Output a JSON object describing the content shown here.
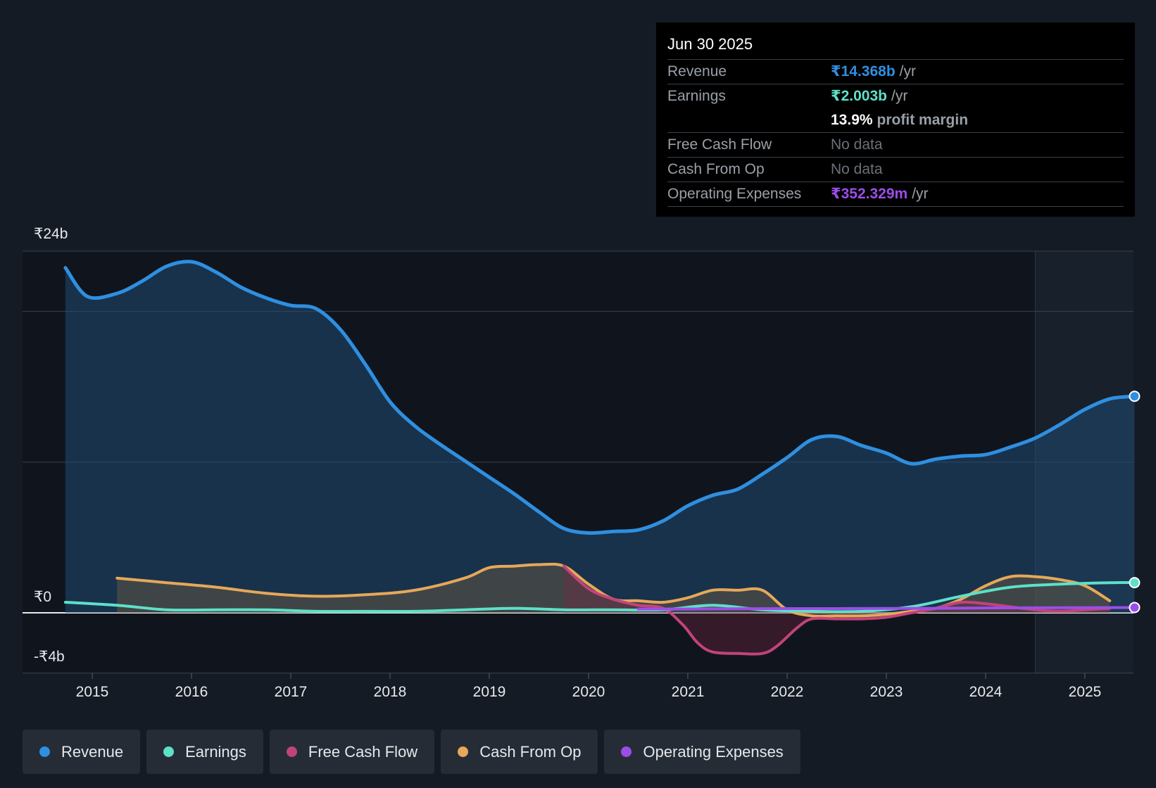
{
  "tooltip": {
    "date": "Jun 30 2025",
    "revenue": {
      "label": "Revenue",
      "value": "₹14.368b",
      "unit": "/yr"
    },
    "earnings": {
      "label": "Earnings",
      "value": "₹2.003b",
      "unit": "/yr"
    },
    "margin": {
      "value": "13.9%",
      "label": "profit margin"
    },
    "fcf": {
      "label": "Free Cash Flow",
      "value": "No data"
    },
    "cfo": {
      "label": "Cash From Op",
      "value": "No data"
    },
    "opex": {
      "label": "Operating Expenses",
      "value": "₹352.329m",
      "unit": "/yr"
    }
  },
  "legend": {
    "revenue": "Revenue",
    "earnings": "Earnings",
    "fcf": "Free Cash Flow",
    "cfo": "Cash From Op",
    "opex": "Operating Expenses"
  },
  "colors": {
    "revenue": "#2f8fe0",
    "earnings": "#5ee0c8",
    "fcf": "#c2437a",
    "cfo": "#e6a85a",
    "opex": "#9c4de8"
  },
  "chart_data": {
    "type": "line",
    "ylim": [
      -4,
      24
    ],
    "y_tick_labels": [
      {
        "value": 24,
        "label": "₹24b"
      },
      {
        "value": 0,
        "label": "₹0"
      },
      {
        "value": -4,
        "label": "-₹4b"
      }
    ],
    "gridlines": [
      24,
      20,
      10,
      0,
      -4
    ],
    "x_ticks": [
      2015,
      2016,
      2017,
      2018,
      2019,
      2020,
      2021,
      2022,
      2023,
      2024,
      2025
    ],
    "xlim": [
      2014.3,
      2025.5
    ],
    "forecast_start": 2024.5,
    "series": [
      {
        "key": "revenue",
        "name": "Revenue",
        "area": true,
        "points": [
          [
            2014.73,
            22.9
          ],
          [
            2014.95,
            21.0
          ],
          [
            2015.25,
            21.2
          ],
          [
            2015.5,
            22.0
          ],
          [
            2015.75,
            23.0
          ],
          [
            2016.0,
            23.3
          ],
          [
            2016.25,
            22.6
          ],
          [
            2016.5,
            21.6
          ],
          [
            2016.75,
            20.9
          ],
          [
            2017.0,
            20.4
          ],
          [
            2017.25,
            20.2
          ],
          [
            2017.5,
            18.8
          ],
          [
            2017.75,
            16.5
          ],
          [
            2018.0,
            14.0
          ],
          [
            2018.25,
            12.4
          ],
          [
            2018.5,
            11.2
          ],
          [
            2018.75,
            10.1
          ],
          [
            2019.0,
            9.0
          ],
          [
            2019.25,
            7.9
          ],
          [
            2019.5,
            6.7
          ],
          [
            2019.75,
            5.6
          ],
          [
            2020.0,
            5.3
          ],
          [
            2020.25,
            5.4
          ],
          [
            2020.5,
            5.5
          ],
          [
            2020.75,
            6.1
          ],
          [
            2021.0,
            7.1
          ],
          [
            2021.25,
            7.8
          ],
          [
            2021.5,
            8.2
          ],
          [
            2021.75,
            9.2
          ],
          [
            2022.0,
            10.3
          ],
          [
            2022.25,
            11.5
          ],
          [
            2022.5,
            11.7
          ],
          [
            2022.75,
            11.1
          ],
          [
            2023.0,
            10.6
          ],
          [
            2023.25,
            9.9
          ],
          [
            2023.5,
            10.2
          ],
          [
            2023.75,
            10.4
          ],
          [
            2024.0,
            10.5
          ],
          [
            2024.25,
            11.0
          ],
          [
            2024.5,
            11.6
          ],
          [
            2024.75,
            12.5
          ],
          [
            2025.0,
            13.5
          ],
          [
            2025.25,
            14.2
          ],
          [
            2025.5,
            14.37
          ]
        ]
      },
      {
        "key": "earnings",
        "name": "Earnings",
        "area": false,
        "points": [
          [
            2014.73,
            0.7
          ],
          [
            2015.25,
            0.5
          ],
          [
            2015.75,
            0.2
          ],
          [
            2016.25,
            0.2
          ],
          [
            2016.75,
            0.2
          ],
          [
            2017.25,
            0.1
          ],
          [
            2017.75,
            0.1
          ],
          [
            2018.25,
            0.1
          ],
          [
            2018.75,
            0.2
          ],
          [
            2019.25,
            0.3
          ],
          [
            2019.75,
            0.2
          ],
          [
            2020.25,
            0.2
          ],
          [
            2020.75,
            0.2
          ],
          [
            2021.25,
            0.5
          ],
          [
            2021.75,
            0.2
          ],
          [
            2022.25,
            0.1
          ],
          [
            2022.75,
            0.1
          ],
          [
            2023.25,
            0.4
          ],
          [
            2023.75,
            1.1
          ],
          [
            2024.25,
            1.7
          ],
          [
            2024.75,
            1.9
          ],
          [
            2025.25,
            2.0
          ],
          [
            2025.5,
            2.003
          ]
        ]
      },
      {
        "key": "fcf",
        "name": "Free Cash Flow",
        "area": true,
        "points": [
          [
            2019.75,
            3.1
          ],
          [
            2020.0,
            1.6
          ],
          [
            2020.25,
            0.9
          ],
          [
            2020.5,
            0.5
          ],
          [
            2020.75,
            0.3
          ],
          [
            2020.95,
            -0.8
          ],
          [
            2021.1,
            -2.0
          ],
          [
            2021.25,
            -2.6
          ],
          [
            2021.5,
            -2.7
          ],
          [
            2021.75,
            -2.7
          ],
          [
            2021.9,
            -2.2
          ],
          [
            2022.1,
            -1.0
          ],
          [
            2022.25,
            -0.4
          ],
          [
            2022.5,
            -0.4
          ],
          [
            2022.75,
            -0.4
          ],
          [
            2023.0,
            -0.3
          ],
          [
            2023.25,
            0.0
          ],
          [
            2023.5,
            0.3
          ],
          [
            2023.75,
            0.7
          ],
          [
            2024.0,
            0.6
          ],
          [
            2024.25,
            0.4
          ],
          [
            2024.5,
            0.2
          ],
          [
            2024.75,
            0.1
          ],
          [
            2025.0,
            0.2
          ],
          [
            2025.25,
            0.3
          ]
        ]
      },
      {
        "key": "cfo",
        "name": "Cash From Op",
        "area": true,
        "points": [
          [
            2015.25,
            2.3
          ],
          [
            2015.75,
            2.0
          ],
          [
            2016.25,
            1.7
          ],
          [
            2016.75,
            1.3
          ],
          [
            2017.25,
            1.1
          ],
          [
            2017.75,
            1.2
          ],
          [
            2018.25,
            1.5
          ],
          [
            2018.75,
            2.3
          ],
          [
            2019.0,
            3.0
          ],
          [
            2019.25,
            3.1
          ],
          [
            2019.5,
            3.2
          ],
          [
            2019.75,
            3.1
          ],
          [
            2020.0,
            1.9
          ],
          [
            2020.25,
            0.9
          ],
          [
            2020.5,
            0.8
          ],
          [
            2020.75,
            0.7
          ],
          [
            2021.0,
            1.0
          ],
          [
            2021.25,
            1.5
          ],
          [
            2021.5,
            1.5
          ],
          [
            2021.75,
            1.5
          ],
          [
            2022.0,
            0.2
          ],
          [
            2022.25,
            -0.2
          ],
          [
            2022.5,
            -0.2
          ],
          [
            2022.75,
            -0.2
          ],
          [
            2023.0,
            -0.1
          ],
          [
            2023.25,
            0.1
          ],
          [
            2023.5,
            0.3
          ],
          [
            2023.75,
            0.9
          ],
          [
            2024.0,
            1.8
          ],
          [
            2024.25,
            2.4
          ],
          [
            2024.5,
            2.4
          ],
          [
            2024.75,
            2.2
          ],
          [
            2025.0,
            1.8
          ],
          [
            2025.25,
            0.8
          ]
        ]
      },
      {
        "key": "opex",
        "name": "Operating Expenses",
        "area": false,
        "points": [
          [
            2020.5,
            0.25
          ],
          [
            2021.0,
            0.25
          ],
          [
            2021.5,
            0.27
          ],
          [
            2022.0,
            0.28
          ],
          [
            2022.5,
            0.28
          ],
          [
            2023.0,
            0.29
          ],
          [
            2023.5,
            0.3
          ],
          [
            2024.0,
            0.32
          ],
          [
            2024.5,
            0.33
          ],
          [
            2025.0,
            0.34
          ],
          [
            2025.5,
            0.352
          ]
        ]
      }
    ]
  }
}
